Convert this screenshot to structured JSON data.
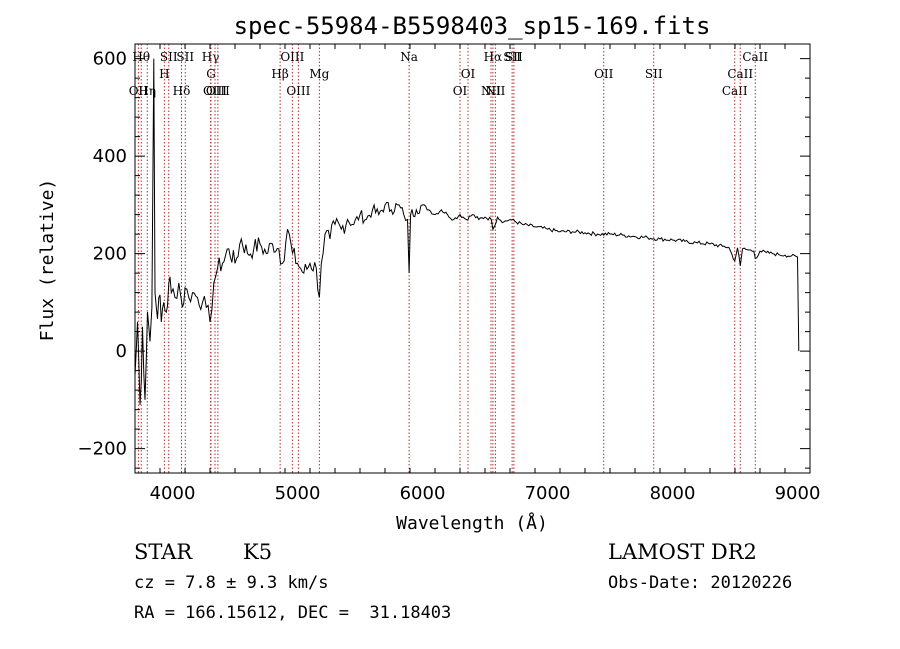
{
  "chart_data": {
    "type": "line",
    "title": "spec-55984-B5598403_sp15-169.fits",
    "xlabel": "Wavelength (Å)",
    "ylabel": "Flux (relative)",
    "xlim": [
      3700,
      9100
    ],
    "ylim": [
      -250,
      630
    ],
    "xticks": [
      4000,
      5000,
      6000,
      7000,
      8000,
      9000
    ],
    "yticks": [
      -200,
      0,
      200,
      400,
      600
    ],
    "grid": false,
    "line_color": "#000000",
    "marker_color": "#b03030",
    "series": [
      {
        "x": [
          3700,
          3720,
          3740,
          3760,
          3780,
          3800,
          3820,
          3835,
          3850,
          3860,
          3870,
          3890,
          3910,
          3930,
          3950,
          3970,
          3990,
          4020,
          4050,
          4080,
          4100,
          4130,
          4160,
          4200,
          4240,
          4270,
          4300,
          4330,
          4360,
          4400,
          4450,
          4500,
          4550,
          4600,
          4650,
          4700,
          4750,
          4800,
          4850,
          4880,
          4920,
          4960,
          5000,
          5050,
          5100,
          5150,
          5175,
          5190,
          5220,
          5260,
          5300,
          5350,
          5400,
          5450,
          5500,
          5550,
          5600,
          5650,
          5700,
          5750,
          5800,
          5850,
          5880,
          5893,
          5905,
          5950,
          6000,
          6050,
          6100,
          6150,
          6200,
          6250,
          6300,
          6350,
          6400,
          6450,
          6500,
          6550,
          6563,
          6600,
          6650,
          6700,
          6800,
          6900,
          7000,
          7100,
          7200,
          7300,
          7400,
          7500,
          7600,
          7700,
          7800,
          7900,
          8000,
          8100,
          8200,
          8300,
          8400,
          8450,
          8498,
          8520,
          8542,
          8560,
          8600,
          8650,
          8662,
          8700,
          8750,
          8800,
          8850,
          8900,
          8950,
          9000,
          9010
        ],
        "y": [
          -50,
          60,
          -110,
          50,
          -100,
          80,
          20,
          90,
          600,
          120,
          90,
          110,
          60,
          100,
          80,
          140,
          120,
          110,
          140,
          90,
          130,
          110,
          120,
          110,
          100,
          90,
          60,
          140,
          170,
          180,
          210,
          180,
          230,
          200,
          210,
          220,
          200,
          220,
          210,
          180,
          250,
          200,
          180,
          160,
          180,
          170,
          110,
          180,
          240,
          230,
          260,
          250,
          270,
          260,
          280,
          270,
          290,
          280,
          300,
          290,
          300,
          280,
          270,
          160,
          280,
          290,
          300,
          290,
          280,
          290,
          280,
          270,
          280,
          270,
          280,
          270,
          275,
          270,
          250,
          275,
          265,
          270,
          260,
          255,
          250,
          245,
          245,
          243,
          240,
          240,
          238,
          235,
          233,
          230,
          228,
          225,
          222,
          220,
          215,
          213,
          185,
          212,
          175,
          210,
          208,
          205,
          190,
          205,
          202,
          200,
          198,
          197,
          195,
          193,
          0
        ]
      }
    ],
    "line_markers": [
      {
        "x": 3727,
        "label": "OII",
        "row": 3
      },
      {
        "x": 3750,
        "label": "Hθ",
        "row": 1
      },
      {
        "x": 3798,
        "label": "Hη",
        "row": 3
      },
      {
        "x": 3935,
        "label": "H",
        "row": 2
      },
      {
        "x": 3970,
        "label": "SII",
        "row": 1
      },
      {
        "x": 4072,
        "label": "Hδ",
        "row": 3
      },
      {
        "x": 4102,
        "label": "SII",
        "row": 1
      },
      {
        "x": 4305,
        "label": "Hγ",
        "row": 1
      },
      {
        "x": 4308,
        "label": "G",
        "row": 2
      },
      {
        "x": 4340,
        "label": "OIII",
        "row": 3
      },
      {
        "x": 4363,
        "label": "OIII",
        "row": 3
      },
      {
        "x": 4861,
        "label": "Hβ",
        "row": 2
      },
      {
        "x": 4959,
        "label": "OIII",
        "row": 1
      },
      {
        "x": 5007,
        "label": "OIII",
        "row": 3
      },
      {
        "x": 5175,
        "label": "Mg",
        "row": 2
      },
      {
        "x": 5893,
        "label": "Na",
        "row": 1
      },
      {
        "x": 6300,
        "label": "OI",
        "row": 3
      },
      {
        "x": 6364,
        "label": "OI",
        "row": 2
      },
      {
        "x": 6548,
        "label": "NII",
        "row": 3
      },
      {
        "x": 6563,
        "label": "Hα",
        "row": 1
      },
      {
        "x": 6583,
        "label": "NII",
        "row": 3
      },
      {
        "x": 6717,
        "label": "SII",
        "row": 1
      },
      {
        "x": 6731,
        "label": "SII",
        "row": 1
      },
      {
        "x": 7450,
        "label": "OII",
        "row": 2
      },
      {
        "x": 7850,
        "label": "SII",
        "row": 2
      },
      {
        "x": 8498,
        "label": "CaII",
        "row": 3
      },
      {
        "x": 8542,
        "label": "CaII",
        "row": 2
      },
      {
        "x": 8662,
        "label": "CaII",
        "row": 1
      }
    ]
  },
  "footer": {
    "class_label": "STAR",
    "subclass_label": "K5",
    "survey_label": "LAMOST DR2",
    "cz_text": "cz = 7.8 ± 9.3 km/s",
    "obs_date_text": "Obs-Date: 20120226",
    "radec_text": "RA = 166.15612, DEC =  31.18403"
  }
}
